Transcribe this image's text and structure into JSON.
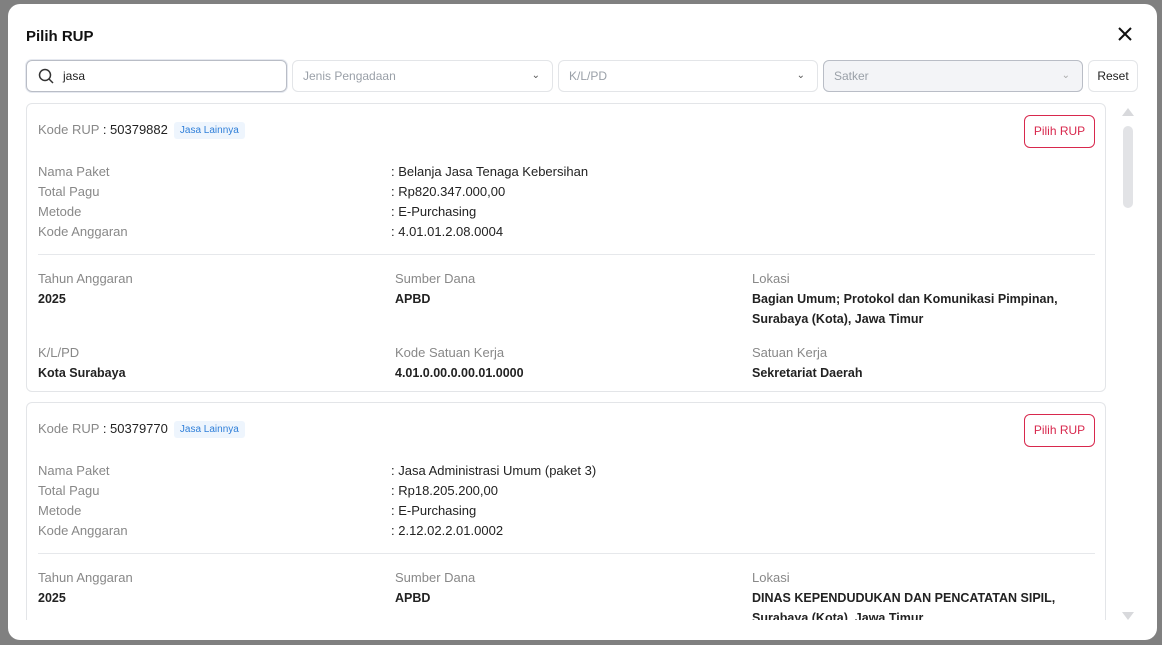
{
  "modal": {
    "title": "Pilih RUP",
    "close_icon": "close-icon"
  },
  "filters": {
    "search_value": "jasa",
    "jenis_placeholder": "Jenis Pengadaan",
    "klpd_placeholder": "K/L/PD",
    "satker_placeholder": "Satker",
    "reset_label": "Reset"
  },
  "labels": {
    "kode_rup": "Kode RUP",
    "nama_paket": "Nama Paket",
    "total_pagu": "Total Pagu",
    "metode": "Metode",
    "kode_anggaran": "Kode Anggaran",
    "tahun": "Tahun Anggaran",
    "sumber": "Sumber Dana",
    "lokasi": "Lokasi",
    "klpd": "K/L/PD",
    "kode_satker": "Kode Satuan Kerja",
    "satker": "Satuan Kerja",
    "pilih": "Pilih RUP"
  },
  "cards": [
    {
      "kode": ": 50379882",
      "badge": "Jasa Lainnya",
      "nama": ": Belanja Jasa Tenaga Kebersihan",
      "pagu": ": Rp820.347.000,00",
      "metode": ": E-Purchasing",
      "anggaran": ": 4.01.01.2.08.0004",
      "tahun": "2025",
      "sumber": "APBD",
      "lokasi": "Bagian Umum; Protokol dan Komunikasi Pimpinan, Surabaya (Kota), Jawa Timur",
      "klpd": "Kota Surabaya",
      "kode_satker": "4.01.0.00.0.00.01.0000",
      "satker": "Sekretariat Daerah"
    },
    {
      "kode": ": 50379770",
      "badge": "Jasa Lainnya",
      "nama": ": Jasa Administrasi Umum (paket 3)",
      "pagu": ": Rp18.205.200,00",
      "metode": ": E-Purchasing",
      "anggaran": ": 2.12.02.2.01.0002",
      "tahun": "2025",
      "sumber": "APBD",
      "lokasi": "DINAS KEPENDUDUKAN DAN PENCATATAN SIPIL, Surabaya (Kota), Jawa Timur"
    }
  ],
  "colors": {
    "accent": "#d8284d",
    "badge": "#2f7fd9"
  }
}
